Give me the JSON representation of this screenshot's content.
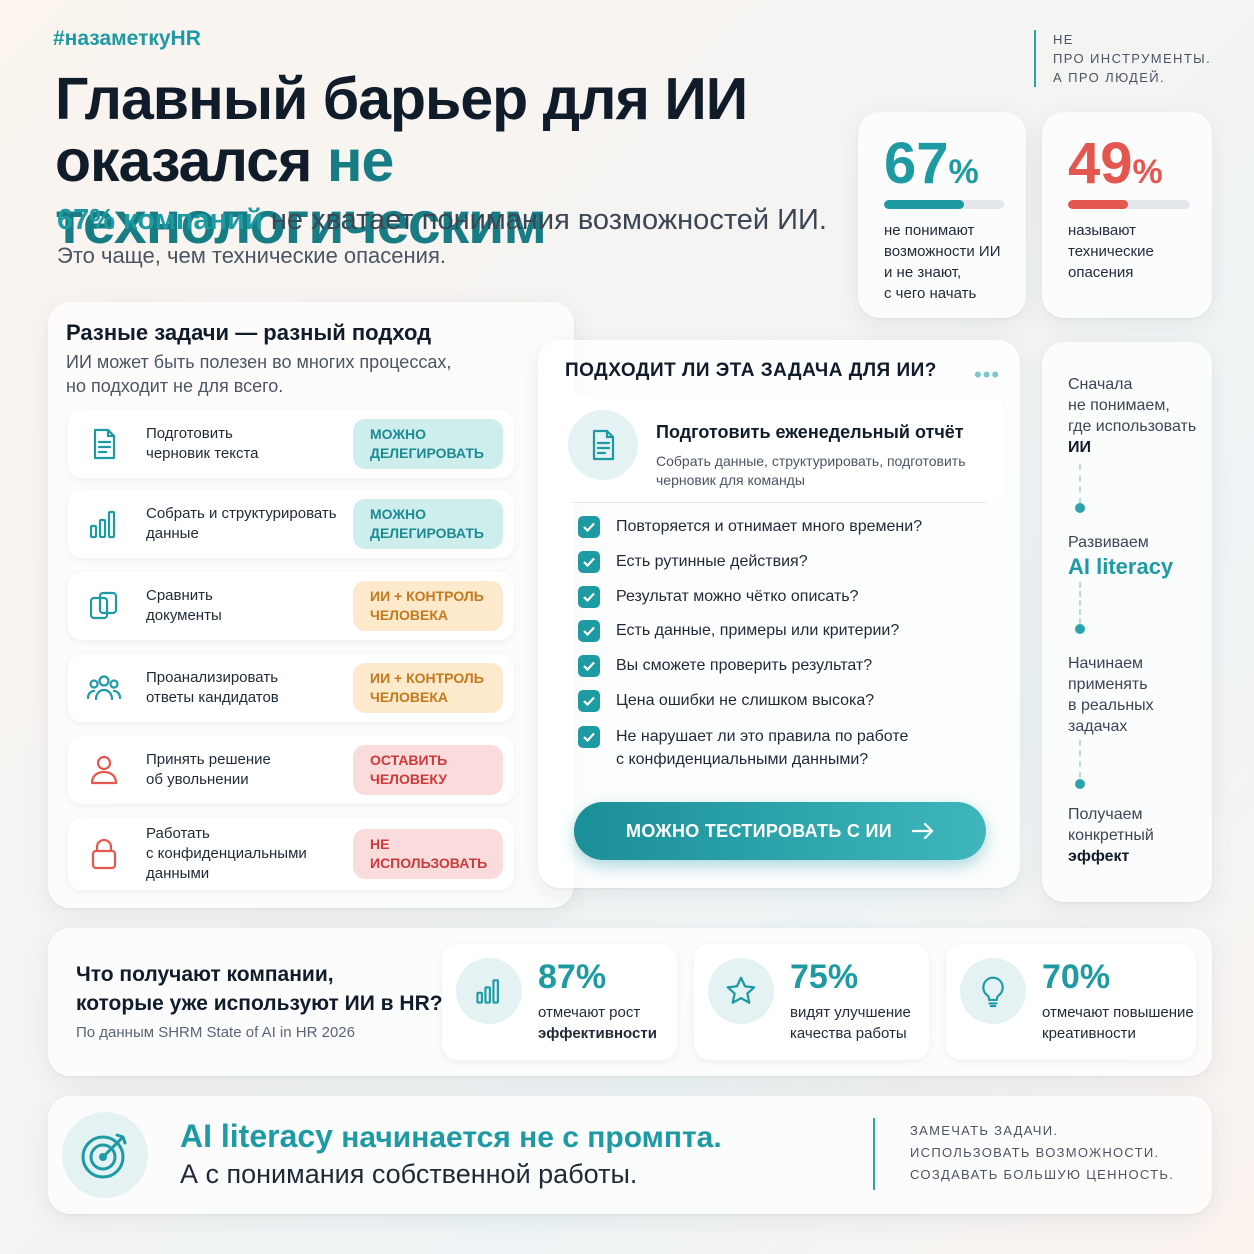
{
  "header": {
    "hashtag": "#назаметкуHR",
    "tagline": [
      "НЕ",
      "ПРО ИНСТРУМЕНТЫ.",
      "А ПРО ЛЮДЕЙ."
    ],
    "title_line1": "Главный барьер для ИИ",
    "title_line2_plain": "оказался ",
    "title_line2_accent": "не технологическим",
    "subtitle_highlight": "67% компаний",
    "subtitle_rest": " не хватает понимания возможностей ИИ.",
    "subtitle2": "Это чаще, чем технические опасения."
  },
  "stats": [
    {
      "value": "67",
      "unit": "%",
      "fill": 0.67,
      "color": "#1e9aa3",
      "lines": [
        "не понимают",
        "возможности ИИ",
        "и не знают,",
        "с чего начать"
      ]
    },
    {
      "value": "49",
      "unit": "%",
      "fill": 0.49,
      "color": "#e4574f",
      "lines": [
        "называют",
        "технические",
        "опасения"
      ]
    }
  ],
  "tasks": {
    "title": "Разные задачи — разный подход",
    "subtitle": [
      "ИИ может быть полезен во многих процессах,",
      "но подходит не для всего."
    ],
    "items": [
      {
        "label": [
          "Подготовить",
          "черновик текста"
        ],
        "icon": "document-icon",
        "badge": [
          "МОЖНО",
          "ДЕЛЕГИРОВАТЬ"
        ],
        "badge_type": "teal"
      },
      {
        "label": [
          "Собрать и структурировать",
          "данные"
        ],
        "icon": "bar-chart-icon",
        "badge": [
          "МОЖНО",
          "ДЕЛЕГИРОВАТЬ"
        ],
        "badge_type": "teal"
      },
      {
        "label": [
          "Сравнить",
          "документы"
        ],
        "icon": "copy-documents-icon",
        "badge": [
          "ИИ + КОНТРОЛЬ",
          "ЧЕЛОВЕКА"
        ],
        "badge_type": "orange"
      },
      {
        "label": [
          "Проанализировать",
          "ответы кандидатов"
        ],
        "icon": "people-icon",
        "badge": [
          "ИИ + КОНТРОЛЬ",
          "ЧЕЛОВЕКА"
        ],
        "badge_type": "orange"
      },
      {
        "label": [
          "Принять решение",
          "об увольнении"
        ],
        "icon": "person-icon",
        "badge": [
          "ОСТАВИТЬ",
          "ЧЕЛОВЕКУ"
        ],
        "badge_type": "red"
      },
      {
        "label": [
          "Работать",
          "с конфиденциальными",
          "данными"
        ],
        "icon": "lock-icon",
        "badge": [
          "НЕ ИСПОЛЬЗОВАТЬ"
        ],
        "badge_type": "red"
      }
    ]
  },
  "checklist": {
    "title": "ПОДХОДИТ ЛИ ЭТА ЗАДАЧА ДЛЯ ИИ?",
    "task_title": "Подготовить еженедельный отчёт",
    "task_desc": [
      "Собрать данные, структурировать, подготовить",
      "черновик для команды"
    ],
    "items": [
      [
        "Повторяется и отнимает много времени?"
      ],
      [
        "Есть рутинные действия?"
      ],
      [
        "Результат можно чётко описать?"
      ],
      [
        "Есть данные, примеры или критерии?"
      ],
      [
        "Вы сможете проверить результат?"
      ],
      [
        "Цена ошибки не слишком высока?"
      ],
      [
        "Не нарушает ли это правила по работе",
        "с конфиденциальными данными?"
      ]
    ],
    "cta": "МОЖНО ТЕСТИРОВАТЬ С ИИ"
  },
  "timeline": {
    "step1": [
      "Сначала",
      "не понимаем,",
      "где использовать"
    ],
    "step1_bold": "ИИ",
    "step2_pre": "Развиваем",
    "step2_accent": "AI literacy",
    "step3": [
      "Начинаем",
      "применять",
      "в реальных",
      "задачах"
    ],
    "step4": [
      "Получаем",
      "конкретный"
    ],
    "step4_bold": "эффект"
  },
  "results": {
    "title": [
      "Что получают компании,",
      "которые уже используют ИИ в HR?"
    ],
    "source": "По данным SHRM State of AI in HR 2026",
    "items": [
      {
        "value": "87%",
        "lines": [
          "отмечают рост"
        ],
        "bold": "эффективности",
        "icon": "bar-chart-icon"
      },
      {
        "value": "75%",
        "lines": [
          "видят улучшение",
          "качества работы"
        ],
        "bold": "",
        "icon": "star-icon"
      },
      {
        "value": "70%",
        "lines": [
          "отмечают повышение",
          "креативности"
        ],
        "bold": "",
        "icon": "lightbulb-icon"
      }
    ]
  },
  "footer": {
    "h1_accent": "AI literacy",
    "h1_rest": " начинается не с промпта.",
    "h2": "А с понимания собственной работы.",
    "right": [
      "ЗАМЕЧАТЬ ЗАДАЧИ.",
      "ИСПОЛЬЗОВАТЬ ВОЗМОЖНОСТИ.",
      "СОЗДАВАТЬ БОЛЬШУЮ ЦЕННОСТЬ."
    ]
  }
}
